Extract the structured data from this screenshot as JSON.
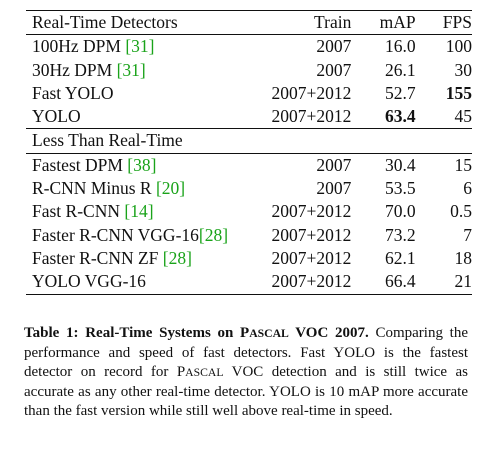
{
  "table": {
    "header": {
      "method": "Real-Time Detectors",
      "train": "Train",
      "map": "mAP",
      "fps": "FPS"
    },
    "realtime_rows": [
      {
        "method": "100Hz DPM ",
        "ref": "[31]",
        "train": "2007",
        "map": "16.0",
        "fps": "100"
      },
      {
        "method": "30Hz DPM ",
        "ref": "[31]",
        "train": "2007",
        "map": "26.1",
        "fps": "30"
      },
      {
        "method": "Fast YOLO",
        "ref": "",
        "train": "2007+2012",
        "map": "52.7",
        "fps": "155"
      },
      {
        "method": "YOLO",
        "ref": "",
        "train": "2007+2012",
        "map": "63.4",
        "fps": "45"
      }
    ],
    "section2_label": "Less Than Real-Time",
    "slow_rows": [
      {
        "method": "Fastest DPM ",
        "ref": "[38]",
        "train": "2007",
        "map": "30.4",
        "fps": "15"
      },
      {
        "method": "R-CNN Minus R ",
        "ref": "[20]",
        "train": "2007",
        "map": "53.5",
        "fps": "6"
      },
      {
        "method": "Fast R-CNN ",
        "ref": "[14]",
        "train": "2007+2012",
        "map": "70.0",
        "fps": "0.5"
      },
      {
        "method": "Faster R-CNN VGG-16",
        "ref": "[28]",
        "train": "2007+2012",
        "map": "73.2",
        "fps": "7"
      },
      {
        "method": "Faster R-CNN ZF ",
        "ref": "[28]",
        "train": "2007+2012",
        "map": "62.1",
        "fps": "18"
      },
      {
        "method": "YOLO VGG-16",
        "ref": "",
        "train": "2007+2012",
        "map": "66.4",
        "fps": "21"
      }
    ]
  },
  "caption": {
    "label": "Table 1:",
    "title_a": " Real-Time Systems on ",
    "title_p": "P",
    "title_ascal": "ASCAL",
    "title_b": " VOC 2007.",
    "text_a": " Comparing the performance and speed of fast detectors. Fast YOLO is the fastest detector on record for ",
    "text_p": "P",
    "text_ascal": "ASCAL",
    "text_b": " VOC detection and is still twice as accurate as any other real-time detector. YOLO is 10 mAP more accurate than the fast version while still well above real-time in speed."
  }
}
